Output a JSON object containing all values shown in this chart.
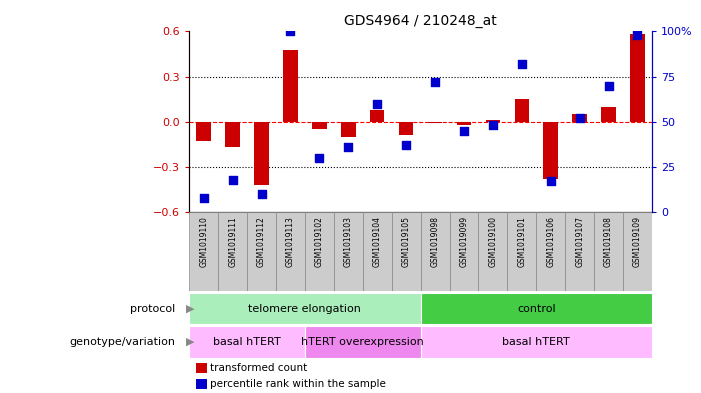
{
  "title": "GDS4964 / 210248_at",
  "samples": [
    "GSM1019110",
    "GSM1019111",
    "GSM1019112",
    "GSM1019113",
    "GSM1019102",
    "GSM1019103",
    "GSM1019104",
    "GSM1019105",
    "GSM1019098",
    "GSM1019099",
    "GSM1019100",
    "GSM1019101",
    "GSM1019106",
    "GSM1019107",
    "GSM1019108",
    "GSM1019109"
  ],
  "transformed_count": [
    -0.13,
    -0.17,
    -0.42,
    0.48,
    -0.05,
    -0.1,
    0.08,
    -0.09,
    -0.01,
    -0.02,
    0.01,
    0.15,
    -0.38,
    0.05,
    0.1,
    0.58
  ],
  "percentile_rank": [
    8,
    18,
    10,
    100,
    30,
    36,
    60,
    37,
    72,
    45,
    48,
    82,
    17,
    52,
    70,
    98
  ],
  "ylim_left": [
    -0.6,
    0.6
  ],
  "ylim_right": [
    0,
    100
  ],
  "yticks_left": [
    -0.6,
    -0.3,
    0.0,
    0.3,
    0.6
  ],
  "yticks_right": [
    0,
    25,
    50,
    75,
    100
  ],
  "hlines_dotted": [
    0.3,
    -0.3
  ],
  "hline_red": 0.0,
  "bar_color": "#cc0000",
  "dot_color": "#0000cc",
  "protocol_groups": [
    {
      "label": "telomere elongation",
      "start": 0,
      "end": 8,
      "color": "#aaeebb"
    },
    {
      "label": "control",
      "start": 8,
      "end": 16,
      "color": "#44cc44"
    }
  ],
  "genotype_groups": [
    {
      "label": "basal hTERT",
      "start": 0,
      "end": 4,
      "color": "#ffbbff"
    },
    {
      "label": "hTERT overexpression",
      "start": 4,
      "end": 8,
      "color": "#ee88ee"
    },
    {
      "label": "basal hTERT",
      "start": 8,
      "end": 16,
      "color": "#ffbbff"
    }
  ],
  "protocol_label": "protocol",
  "genotype_label": "genotype/variation",
  "legend_items": [
    {
      "label": "transformed count",
      "color": "#cc0000"
    },
    {
      "label": "percentile rank within the sample",
      "color": "#0000cc"
    }
  ],
  "bar_width": 0.5,
  "dot_size": 30,
  "left_tick_color": "#cc0000",
  "right_tick_color": "#0000cc",
  "sample_box_color": "#cccccc",
  "sample_box_edge": "#888888"
}
